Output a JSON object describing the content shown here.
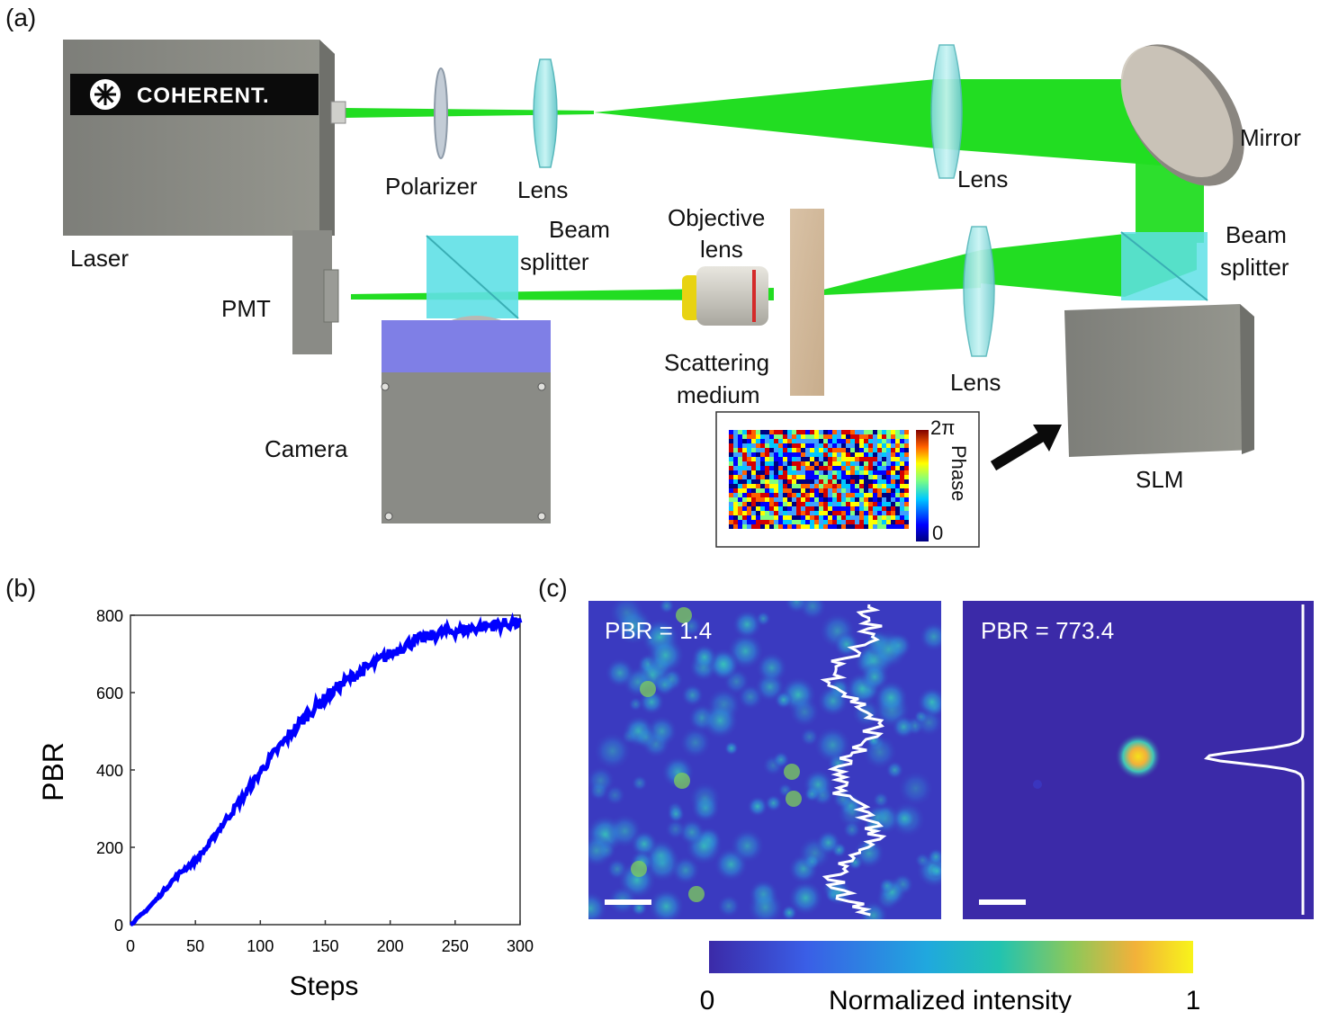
{
  "panels": {
    "a": "(a)",
    "b": "(b)",
    "c": "(c)"
  },
  "setup": {
    "laser_brand": "COHERENT.",
    "labels": {
      "laser": "Laser",
      "polarizer": "Polarizer",
      "lens1": "Lens",
      "lens2": "Lens",
      "mirror": "Mirror",
      "beam_splitter_left_1": "Beam",
      "beam_splitter_left_2": "splitter",
      "objective_1": "Objective",
      "objective_2": "lens",
      "beam_splitter_right_1": "Beam",
      "beam_splitter_right_2": "splitter",
      "pmt": "PMT",
      "scattering_1": "Scattering",
      "scattering_2": "medium",
      "lens3": "Lens",
      "camera": "Camera",
      "slm": "SLM"
    },
    "phase_inset": {
      "max_label": "2π",
      "min_label": "0",
      "axis_label": "Phase"
    },
    "colors": {
      "beam": "#22dd22",
      "device_gray": "#8c8d88",
      "camera_blue": "#7f7fe6",
      "splitter_cyan": "#5fe0e6"
    }
  },
  "chart_data": {
    "type": "line",
    "xlabel": "Steps",
    "ylabel": "PBR",
    "xlim": [
      0,
      300
    ],
    "ylim": [
      0,
      800
    ],
    "xticks": [
      0,
      50,
      100,
      150,
      200,
      250,
      300
    ],
    "yticks": [
      0,
      200,
      400,
      600,
      800
    ],
    "color": "#0000ff",
    "series": [
      {
        "x": [
          0,
          10,
          20,
          30,
          40,
          50,
          60,
          70,
          80,
          90,
          100,
          110,
          120,
          130,
          140,
          150,
          160,
          170,
          180,
          190,
          200,
          210,
          220,
          230,
          240,
          250,
          260,
          270,
          280,
          290,
          300
        ],
        "values": [
          0,
          30,
          65,
          105,
          140,
          165,
          205,
          255,
          300,
          345,
          395,
          440,
          480,
          520,
          555,
          585,
          615,
          640,
          660,
          680,
          700,
          720,
          735,
          745,
          755,
          760,
          765,
          770,
          775,
          778,
          780
        ]
      }
    ]
  },
  "images": {
    "left_pbr": "PBR = 1.4",
    "right_pbr": "PBR = 773.4",
    "colorbar": {
      "min": "0",
      "max": "1",
      "label": "Normalized intensity"
    },
    "colors": {
      "background": "#3b2aa8",
      "speckle_low": "#3a3ac0",
      "speckle_high": "#35c7c0",
      "spot": "#f5e11a",
      "profile": "#ffffff"
    }
  }
}
